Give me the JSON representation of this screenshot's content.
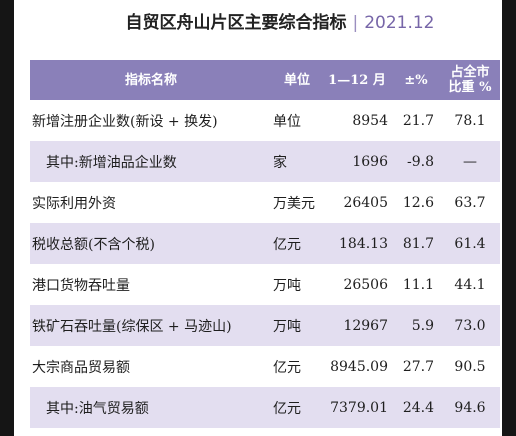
{
  "title": {
    "text": "自贸区舟山片区主要综合指标",
    "separator": "|",
    "date": "2021.12"
  },
  "table": {
    "headers": {
      "name": "指标名称",
      "unit": "单位",
      "value": "1—12 月",
      "growth": "±%",
      "share_line1": "占全市",
      "share_line2": "比重 %"
    },
    "rows": [
      {
        "name": "新增注册企业数(新设 + 换发)",
        "unit": "单位",
        "value": "8954",
        "growth": "21.7",
        "share": "78.1"
      },
      {
        "name": "其中:新增油品企业数",
        "unit": "家",
        "value": "1696",
        "growth": "-9.8",
        "share": "—"
      },
      {
        "name": "实际利用外资",
        "unit": "万美元",
        "value": "26405",
        "growth": "12.6",
        "share": "63.7"
      },
      {
        "name": "税收总额(不含个税)",
        "unit": "亿元",
        "value": "184.13",
        "growth": "81.7",
        "share": "61.4"
      },
      {
        "name": "港口货物吞吐量",
        "unit": "万吨",
        "value": "26506",
        "growth": "11.1",
        "share": "44.1"
      },
      {
        "name": "铁矿石吞吐量(综保区 + 马迹山)",
        "unit": "万吨",
        "value": "12967",
        "growth": "5.9",
        "share": "73.0"
      },
      {
        "name": "大宗商品贸易额",
        "unit": "亿元",
        "value": "8945.09",
        "growth": "27.7",
        "share": "90.5"
      },
      {
        "name": "其中:油气贸易额",
        "unit": "亿元",
        "value": "7379.01",
        "growth": "24.4",
        "share": "94.6"
      }
    ]
  },
  "colors": {
    "header_bg": "#8a80b9",
    "band_bg": "#e3def0",
    "accent_text": "#7766a8"
  }
}
